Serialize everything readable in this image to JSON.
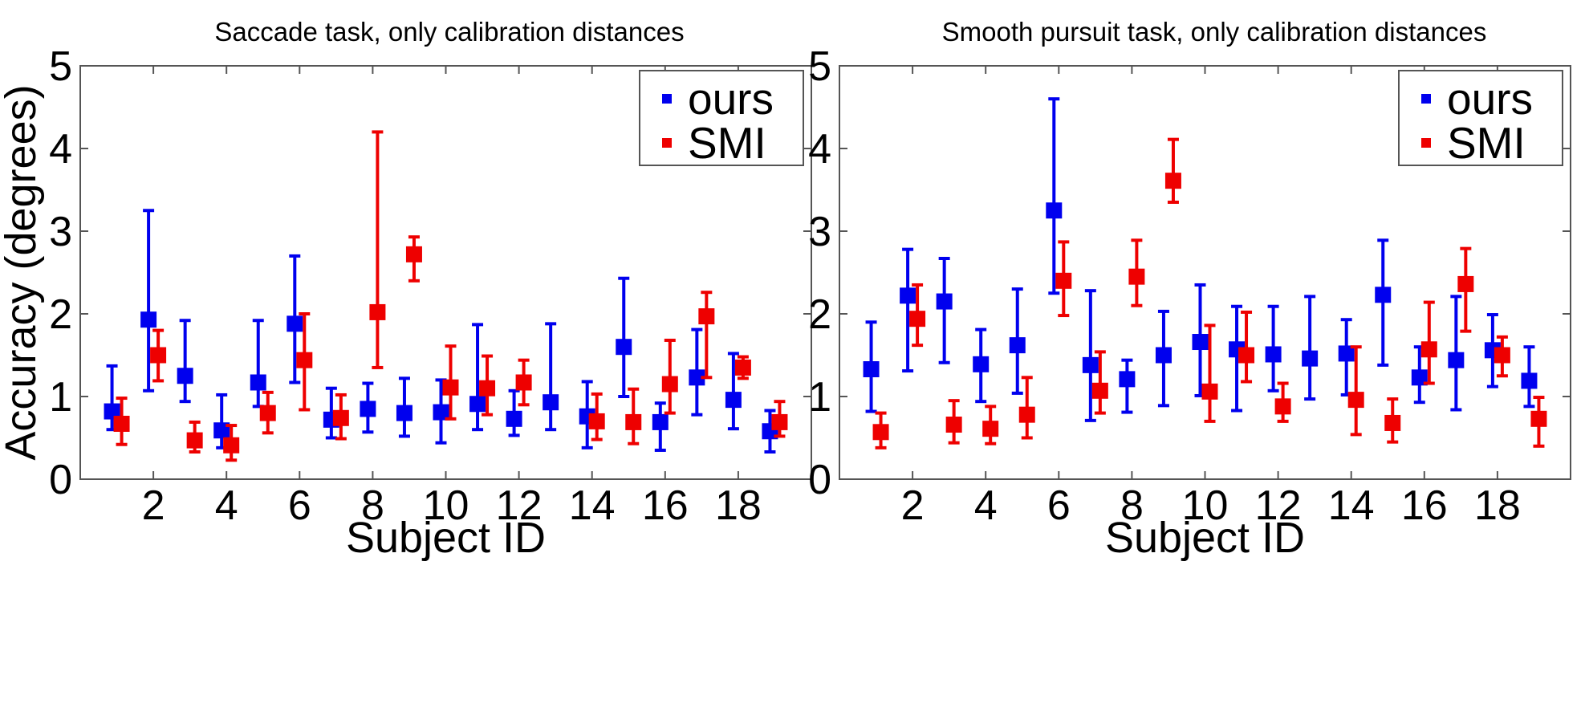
{
  "chart_data": [
    {
      "type": "scatter",
      "title": "Saccade task, only calibration distances",
      "xlabel": "Subject ID",
      "ylabel": "Accuracy (degrees)",
      "xlim": [
        0,
        20
      ],
      "ylim": [
        0,
        5
      ],
      "xticks": [
        "2",
        "4",
        "6",
        "8",
        "10",
        "12",
        "14",
        "16",
        "18"
      ],
      "yticks": [
        "0",
        "1",
        "2",
        "3",
        "4",
        "5"
      ],
      "legend": {
        "position": "top-right",
        "entries": [
          "ours",
          "SMI"
        ]
      },
      "series": [
        {
          "name": "ours",
          "color": "#0000ee",
          "x": [
            1,
            2,
            3,
            4,
            5,
            6,
            7,
            8,
            9,
            10,
            11,
            12,
            13,
            14,
            15,
            16,
            17,
            18,
            19
          ],
          "values": [
            0.82,
            1.93,
            1.25,
            0.59,
            1.17,
            1.88,
            0.72,
            0.85,
            0.8,
            0.81,
            0.91,
            0.73,
            0.93,
            0.76,
            1.6,
            0.69,
            1.23,
            0.96,
            0.58
          ],
          "lower": [
            0.6,
            1.07,
            0.94,
            0.38,
            0.88,
            1.17,
            0.5,
            0.57,
            0.52,
            0.44,
            0.6,
            0.53,
            0.6,
            0.38,
            1.0,
            0.35,
            0.78,
            0.61,
            0.33
          ],
          "upper": [
            1.37,
            3.25,
            1.92,
            1.02,
            1.92,
            2.7,
            1.1,
            1.16,
            1.22,
            1.2,
            1.87,
            1.07,
            1.88,
            1.18,
            2.43,
            0.92,
            1.81,
            1.52,
            0.83
          ]
        },
        {
          "name": "SMI",
          "color": "#ee0000",
          "x": [
            1,
            2,
            3,
            4,
            5,
            6,
            7,
            8,
            9,
            10,
            11,
            12,
            13,
            14,
            15,
            16,
            17,
            18,
            19
          ],
          "values": [
            0.67,
            1.5,
            0.47,
            0.41,
            0.8,
            1.44,
            0.74,
            2.02,
            2.72,
            1.11,
            1.1,
            1.17,
            null,
            0.7,
            0.69,
            1.15,
            1.97,
            1.35,
            0.69
          ],
          "lower": [
            0.42,
            1.19,
            0.33,
            0.23,
            0.56,
            0.84,
            0.49,
            1.35,
            2.4,
            0.73,
            0.78,
            0.9,
            null,
            0.48,
            0.43,
            0.8,
            1.23,
            1.22,
            0.52
          ],
          "upper": [
            0.98,
            1.8,
            0.69,
            0.65,
            1.05,
            2.0,
            1.02,
            4.2,
            2.93,
            1.61,
            1.49,
            1.44,
            null,
            1.03,
            1.09,
            1.68,
            2.26,
            1.48,
            0.94
          ]
        }
      ]
    },
    {
      "type": "scatter",
      "title": "Smooth pursuit task, only calibration distances",
      "xlabel": "Subject ID",
      "ylabel": "",
      "xlim": [
        0,
        20
      ],
      "ylim": [
        0,
        5
      ],
      "xticks": [
        "2",
        "4",
        "6",
        "8",
        "10",
        "12",
        "14",
        "16",
        "18"
      ],
      "yticks": [
        "0",
        "1",
        "2",
        "3",
        "4",
        "5"
      ],
      "legend": {
        "position": "top-right",
        "entries": [
          "ours",
          "SMI"
        ]
      },
      "series": [
        {
          "name": "ours",
          "color": "#0000ee",
          "x": [
            1,
            2,
            3,
            4,
            5,
            6,
            7,
            8,
            9,
            10,
            11,
            12,
            13,
            14,
            15,
            16,
            17,
            18,
            19
          ],
          "values": [
            1.33,
            2.22,
            2.15,
            1.39,
            1.62,
            3.25,
            1.38,
            1.21,
            1.5,
            1.66,
            1.57,
            1.51,
            1.46,
            1.52,
            2.23,
            1.23,
            1.44,
            1.56,
            1.19
          ],
          "lower": [
            0.82,
            1.31,
            1.41,
            0.94,
            1.04,
            2.25,
            0.71,
            0.81,
            0.89,
            1.01,
            0.83,
            1.07,
            0.97,
            1.02,
            1.38,
            0.93,
            0.84,
            1.12,
            0.88
          ],
          "upper": [
            1.9,
            2.78,
            2.67,
            1.81,
            2.3,
            4.6,
            2.28,
            1.44,
            2.03,
            2.35,
            2.09,
            2.09,
            2.21,
            1.93,
            2.89,
            1.6,
            2.21,
            1.99,
            1.6
          ]
        },
        {
          "name": "SMI",
          "color": "#ee0000",
          "x": [
            1,
            2,
            3,
            4,
            5,
            6,
            7,
            8,
            9,
            10,
            11,
            12,
            13,
            14,
            15,
            16,
            17,
            18,
            19
          ],
          "values": [
            0.57,
            1.94,
            0.66,
            0.61,
            0.78,
            2.4,
            1.07,
            2.45,
            3.61,
            1.06,
            1.5,
            0.88,
            null,
            0.96,
            0.68,
            1.57,
            2.36,
            1.5,
            0.73
          ],
          "lower": [
            0.38,
            1.62,
            0.44,
            0.43,
            0.5,
            1.98,
            0.8,
            2.1,
            3.35,
            0.7,
            1.18,
            0.7,
            null,
            0.54,
            0.45,
            1.16,
            1.79,
            1.25,
            0.4
          ],
          "upper": [
            0.8,
            2.35,
            0.95,
            0.88,
            1.23,
            2.87,
            1.54,
            2.89,
            4.11,
            1.86,
            2.02,
            1.16,
            null,
            1.6,
            0.97,
            2.14,
            2.79,
            1.72,
            0.99
          ]
        }
      ]
    }
  ]
}
